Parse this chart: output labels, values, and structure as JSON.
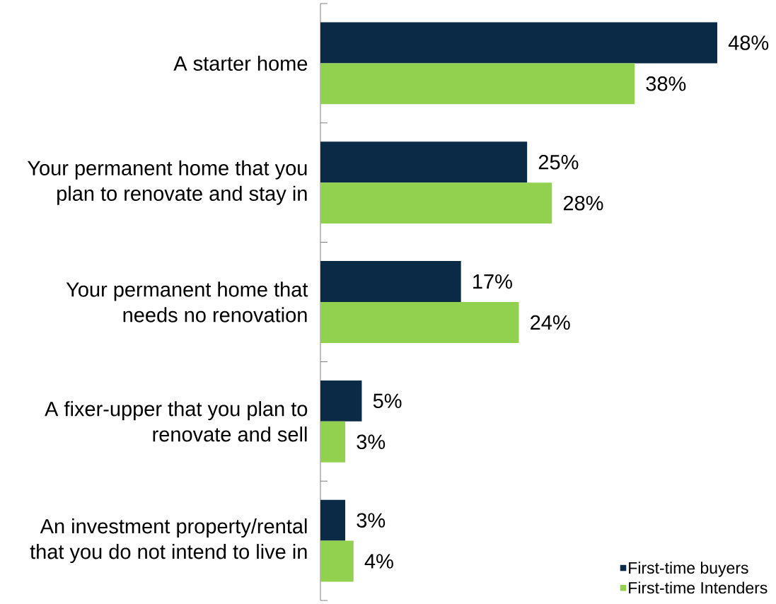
{
  "chart_data": {
    "type": "bar",
    "orientation": "horizontal",
    "categories": [
      "A starter home",
      "Your permanent home that you plan to renovate and stay in",
      "Your permanent home that needs no renovation",
      "A fixer-upper that you plan to renovate and sell",
      "An investment property/rental that you do not intend to live in"
    ],
    "series": [
      {
        "name": "First-time buyers",
        "color": "#0b2a46",
        "values": [
          48,
          25,
          17,
          5,
          3
        ],
        "value_labels": [
          "48%",
          "25%",
          "17%",
          "5%",
          "3%"
        ]
      },
      {
        "name": "First-time Intenders",
        "color": "#92d050",
        "values": [
          38,
          28,
          24,
          3,
          4
        ],
        "value_labels": [
          "38%",
          "28%",
          "24%",
          "3%",
          "4%"
        ]
      }
    ],
    "legend": "bottom right"
  }
}
